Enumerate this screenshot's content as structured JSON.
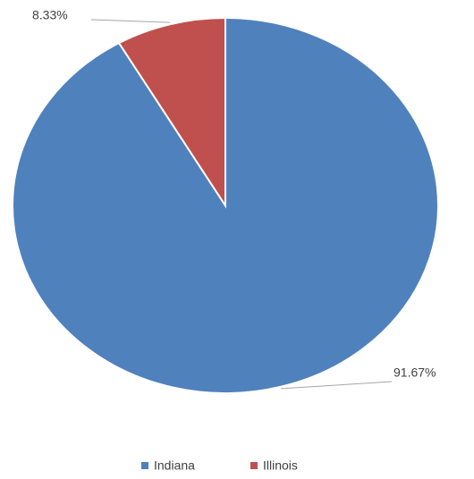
{
  "chart_data": {
    "type": "pie",
    "categories": [
      "Indiana",
      "Illinois"
    ],
    "values": [
      91.67,
      8.33
    ],
    "value_labels": [
      "91.67%",
      "8.33%"
    ],
    "colors": [
      "#4f81bd",
      "#c0504d"
    ],
    "legend": "bottom"
  }
}
